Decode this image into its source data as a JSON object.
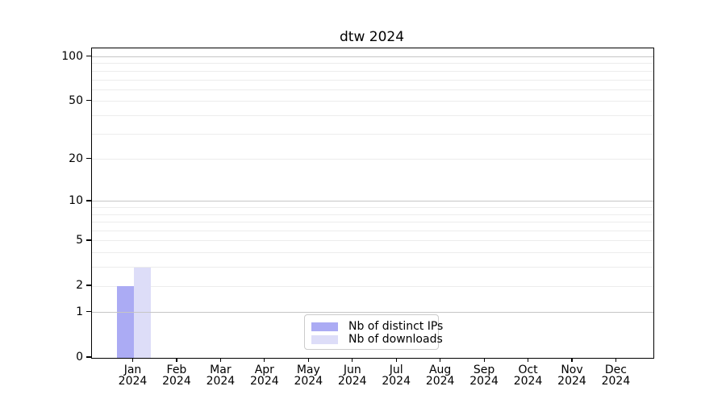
{
  "title": "dtw 2024",
  "legend": {
    "entries": [
      {
        "label": "Nb of distinct IPs",
        "color": "#ababf4"
      },
      {
        "label": "Nb of downloads",
        "color": "#ddddf8"
      }
    ]
  },
  "colors": {
    "background": "#ffffff",
    "axis": "#000000",
    "text": "#000000",
    "grid_major": "#c6c6c6",
    "grid_minor": "#ececec",
    "series_ips": "#ababf4",
    "series_downloads": "#ddddf8"
  },
  "chart_data": {
    "type": "bar",
    "title": "dtw 2024",
    "xlabel": "",
    "ylabel": "",
    "categories": [
      "Jan",
      "Feb",
      "Mar",
      "Apr",
      "May",
      "Jun",
      "Jul",
      "Aug",
      "Sep",
      "Oct",
      "Nov",
      "Dec"
    ],
    "category_year": "2024",
    "series": [
      {
        "name": "Nb of distinct IPs",
        "color": "#ababf4",
        "values": [
          2,
          0,
          0,
          0,
          0,
          0,
          0,
          0,
          0,
          0,
          0,
          0
        ]
      },
      {
        "name": "Nb of downloads",
        "color": "#ddddf8",
        "values": [
          3,
          0,
          0,
          0,
          0,
          0,
          0,
          0,
          0,
          0,
          0,
          0
        ]
      }
    ],
    "yscale": "log1p",
    "ylim": [
      0,
      114
    ],
    "yticks": [
      100,
      50,
      20,
      10,
      5,
      2,
      1,
      0
    ],
    "grid": true,
    "grid_major_values": [
      100,
      10,
      1
    ],
    "grid_minor_values": [
      90,
      80,
      70,
      60,
      50,
      40,
      30,
      20,
      9,
      8,
      7,
      6,
      5,
      4,
      3,
      2
    ],
    "legend_position": "lower center"
  }
}
